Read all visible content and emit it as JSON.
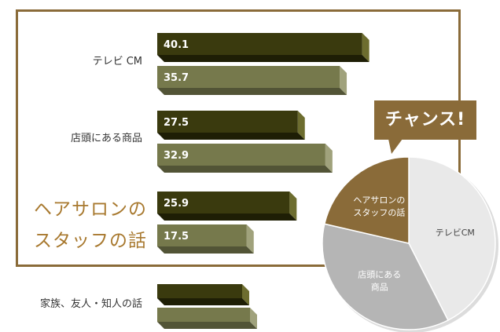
{
  "chart_data": {
    "type": "bar",
    "orientation": "horizontal",
    "categories": [
      "テレビ CM",
      "店頭にある商品",
      "ヘアサロンの|スタッフの話",
      "家族、友人・知人の話"
    ],
    "series": [
      {
        "values": [
          40.1,
          27.5,
          25.9,
          null
        ]
      },
      {
        "values": [
          35.7,
          32.9,
          17.5,
          null
        ]
      }
    ],
    "value_labels": [
      [
        "40.1",
        "35.7"
      ],
      [
        "27.5",
        "32.9"
      ],
      [
        "25.9",
        "17.5"
      ],
      [
        "",
        ""
      ]
    ],
    "colors": {
      "series1": "#3a3a0e",
      "series2": "#76794c",
      "highlight": "#8a6b39",
      "pie_light": "#e9e9e9",
      "pie_mid": "#b5b5b5"
    }
  },
  "pie": {
    "slices": [
      {
        "label": "テレビCM",
        "start_deg": 0,
        "end_deg": 153,
        "color": "#e9e9e9",
        "text_color": "#444444"
      },
      {
        "label": "店頭にある|商品",
        "start_deg": 153,
        "end_deg": 283,
        "color": "#b5b5b5",
        "text_color": "#ffffff"
      },
      {
        "label": "ヘアサロンの|スタッフの話",
        "start_deg": 283,
        "end_deg": 360,
        "color": "#8a6b39",
        "text_color": "#ffffff"
      }
    ]
  },
  "callout": {
    "text": "チャンス!"
  }
}
